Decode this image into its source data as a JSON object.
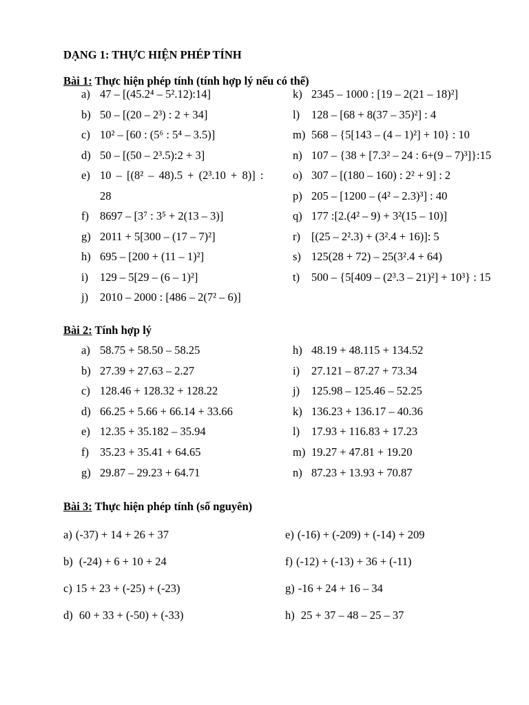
{
  "title": "DẠNG 1: THỰC HIỆN PHÉP TÍNH",
  "sections": [
    {
      "label": "Bài 1:",
      "heading": " Thực hiện phép tính (tính hợp lý nếu có thể)",
      "left": [
        {
          "label": "a)",
          "expr": "47 – [(45.2⁴ – 5².12):14]"
        },
        {
          "label": "b)",
          "expr": "50 – [(20 – 2³) : 2 + 34]"
        },
        {
          "label": "c)",
          "expr": "10² – [60 : (5⁶ : 5⁴ – 3.5)]"
        },
        {
          "label": "d)",
          "expr": "50 – [(50 – 2³.5):2 + 3]"
        },
        {
          "label": "e)",
          "expr": "10 – [(8² – 48).5 + (2³.10 + 8)] :",
          "cont": "28"
        },
        {
          "label": "f)",
          "expr": "8697 – [3⁷ : 3⁵ + 2(13 – 3)]"
        },
        {
          "label": "g)",
          "expr": "2011 + 5[300 – (17 – 7)²]"
        },
        {
          "label": "h)",
          "expr": "695 – [200 + (11 – 1)²]"
        },
        {
          "label": "i)",
          "expr": "129 – 5[29 – (6 – 1)²]"
        },
        {
          "label": "j)",
          "expr": "2010 – 2000 : [486 – 2(7² – 6)]"
        }
      ],
      "right": [
        {
          "label": "k)",
          "expr": "2345 – 1000 : [19 – 2(21 – 18)²]"
        },
        {
          "label": "l)",
          "expr": "128 – [68 + 8(37 – 35)²] : 4"
        },
        {
          "label": "m)",
          "expr": "568 – {5[143 – (4 – 1)²] + 10} : 10"
        },
        {
          "label": "n)",
          "expr": "107 – {38 + [7.3² – 24 : 6+(9 – 7)³]}:15"
        },
        {
          "label": "o)",
          "expr": "307 – [(180 – 160) : 2² + 9] : 2"
        },
        {
          "label": "p)",
          "expr": "205 – [1200 – (4² – 2.3)³] : 40"
        },
        {
          "label": "q)",
          "expr": "177 :[2.(4² – 9) + 3²(15 – 10)]"
        },
        {
          "label": "r)",
          "expr": "[(25 – 2².3) + (3².4 + 16)]: 5"
        },
        {
          "label": "s)",
          "expr": "125(28 + 72) – 25(3².4 + 64)"
        },
        {
          "label": "t)",
          "expr": "500 – {5[409 – (2³.3 – 21)²] + 10³} : 15"
        }
      ]
    },
    {
      "label": "Bài 2:",
      "heading": " Tính hợp lý",
      "left": [
        {
          "label": "a)",
          "expr": "58.75 + 58.50 – 58.25"
        },
        {
          "label": "b)",
          "expr": "27.39 + 27.63 – 2.27"
        },
        {
          "label": "c)",
          "expr": "128.46 + 128.32 + 128.22"
        },
        {
          "label": "d)",
          "expr": "66.25 + 5.66 + 66.14 + 33.66"
        },
        {
          "label": "e)",
          "expr": "12.35 + 35.182 – 35.94"
        },
        {
          "label": "f)",
          "expr": "35.23 + 35.41 + 64.65"
        },
        {
          "label": "g)",
          "expr": "29.87 – 29.23 + 64.71"
        }
      ],
      "right": [
        {
          "label": "h)",
          "expr": "48.19 + 48.115 + 134.52"
        },
        {
          "label": "i)",
          "expr": "27.121 – 87.27 + 73.34"
        },
        {
          "label": "j)",
          "expr": "125.98 – 125.46 – 52.25"
        },
        {
          "label": "k)",
          "expr": "136.23 + 136.17 – 40.36"
        },
        {
          "label": "l)",
          "expr": "17.93 + 116.83 + 17.23"
        },
        {
          "label": "m)",
          "expr": "19.27 + 47.81 + 19.20"
        },
        {
          "label": "n)",
          "expr": "87.23 + 13.93 + 70.87"
        }
      ]
    },
    {
      "label": "Bài 3:",
      "heading": " Thực hiện phép tính (số nguyên)",
      "left": [
        {
          "label": "a)",
          "expr": "(-37) + 14 + 26 + 37"
        },
        {
          "label": "b)",
          "expr": " (-24) + 6 + 10 + 24"
        },
        {
          "label": "c)",
          "expr": "15 + 23 + (-25) + (-23)"
        },
        {
          "label": "d)",
          "expr": " 60 + 33 + (-50) + (-33)"
        }
      ],
      "right": [
        {
          "label": "e)",
          "expr": "(-16) + (-209) + (-14) + 209"
        },
        {
          "label": "f)",
          "expr": "(-12) + (-13) + 36 + (-11)"
        },
        {
          "label": "g)",
          "expr": "-16 + 24 + 16 – 34"
        },
        {
          "label": "h)",
          "expr": " 25 + 37 – 48 – 25 – 37"
        }
      ]
    }
  ]
}
